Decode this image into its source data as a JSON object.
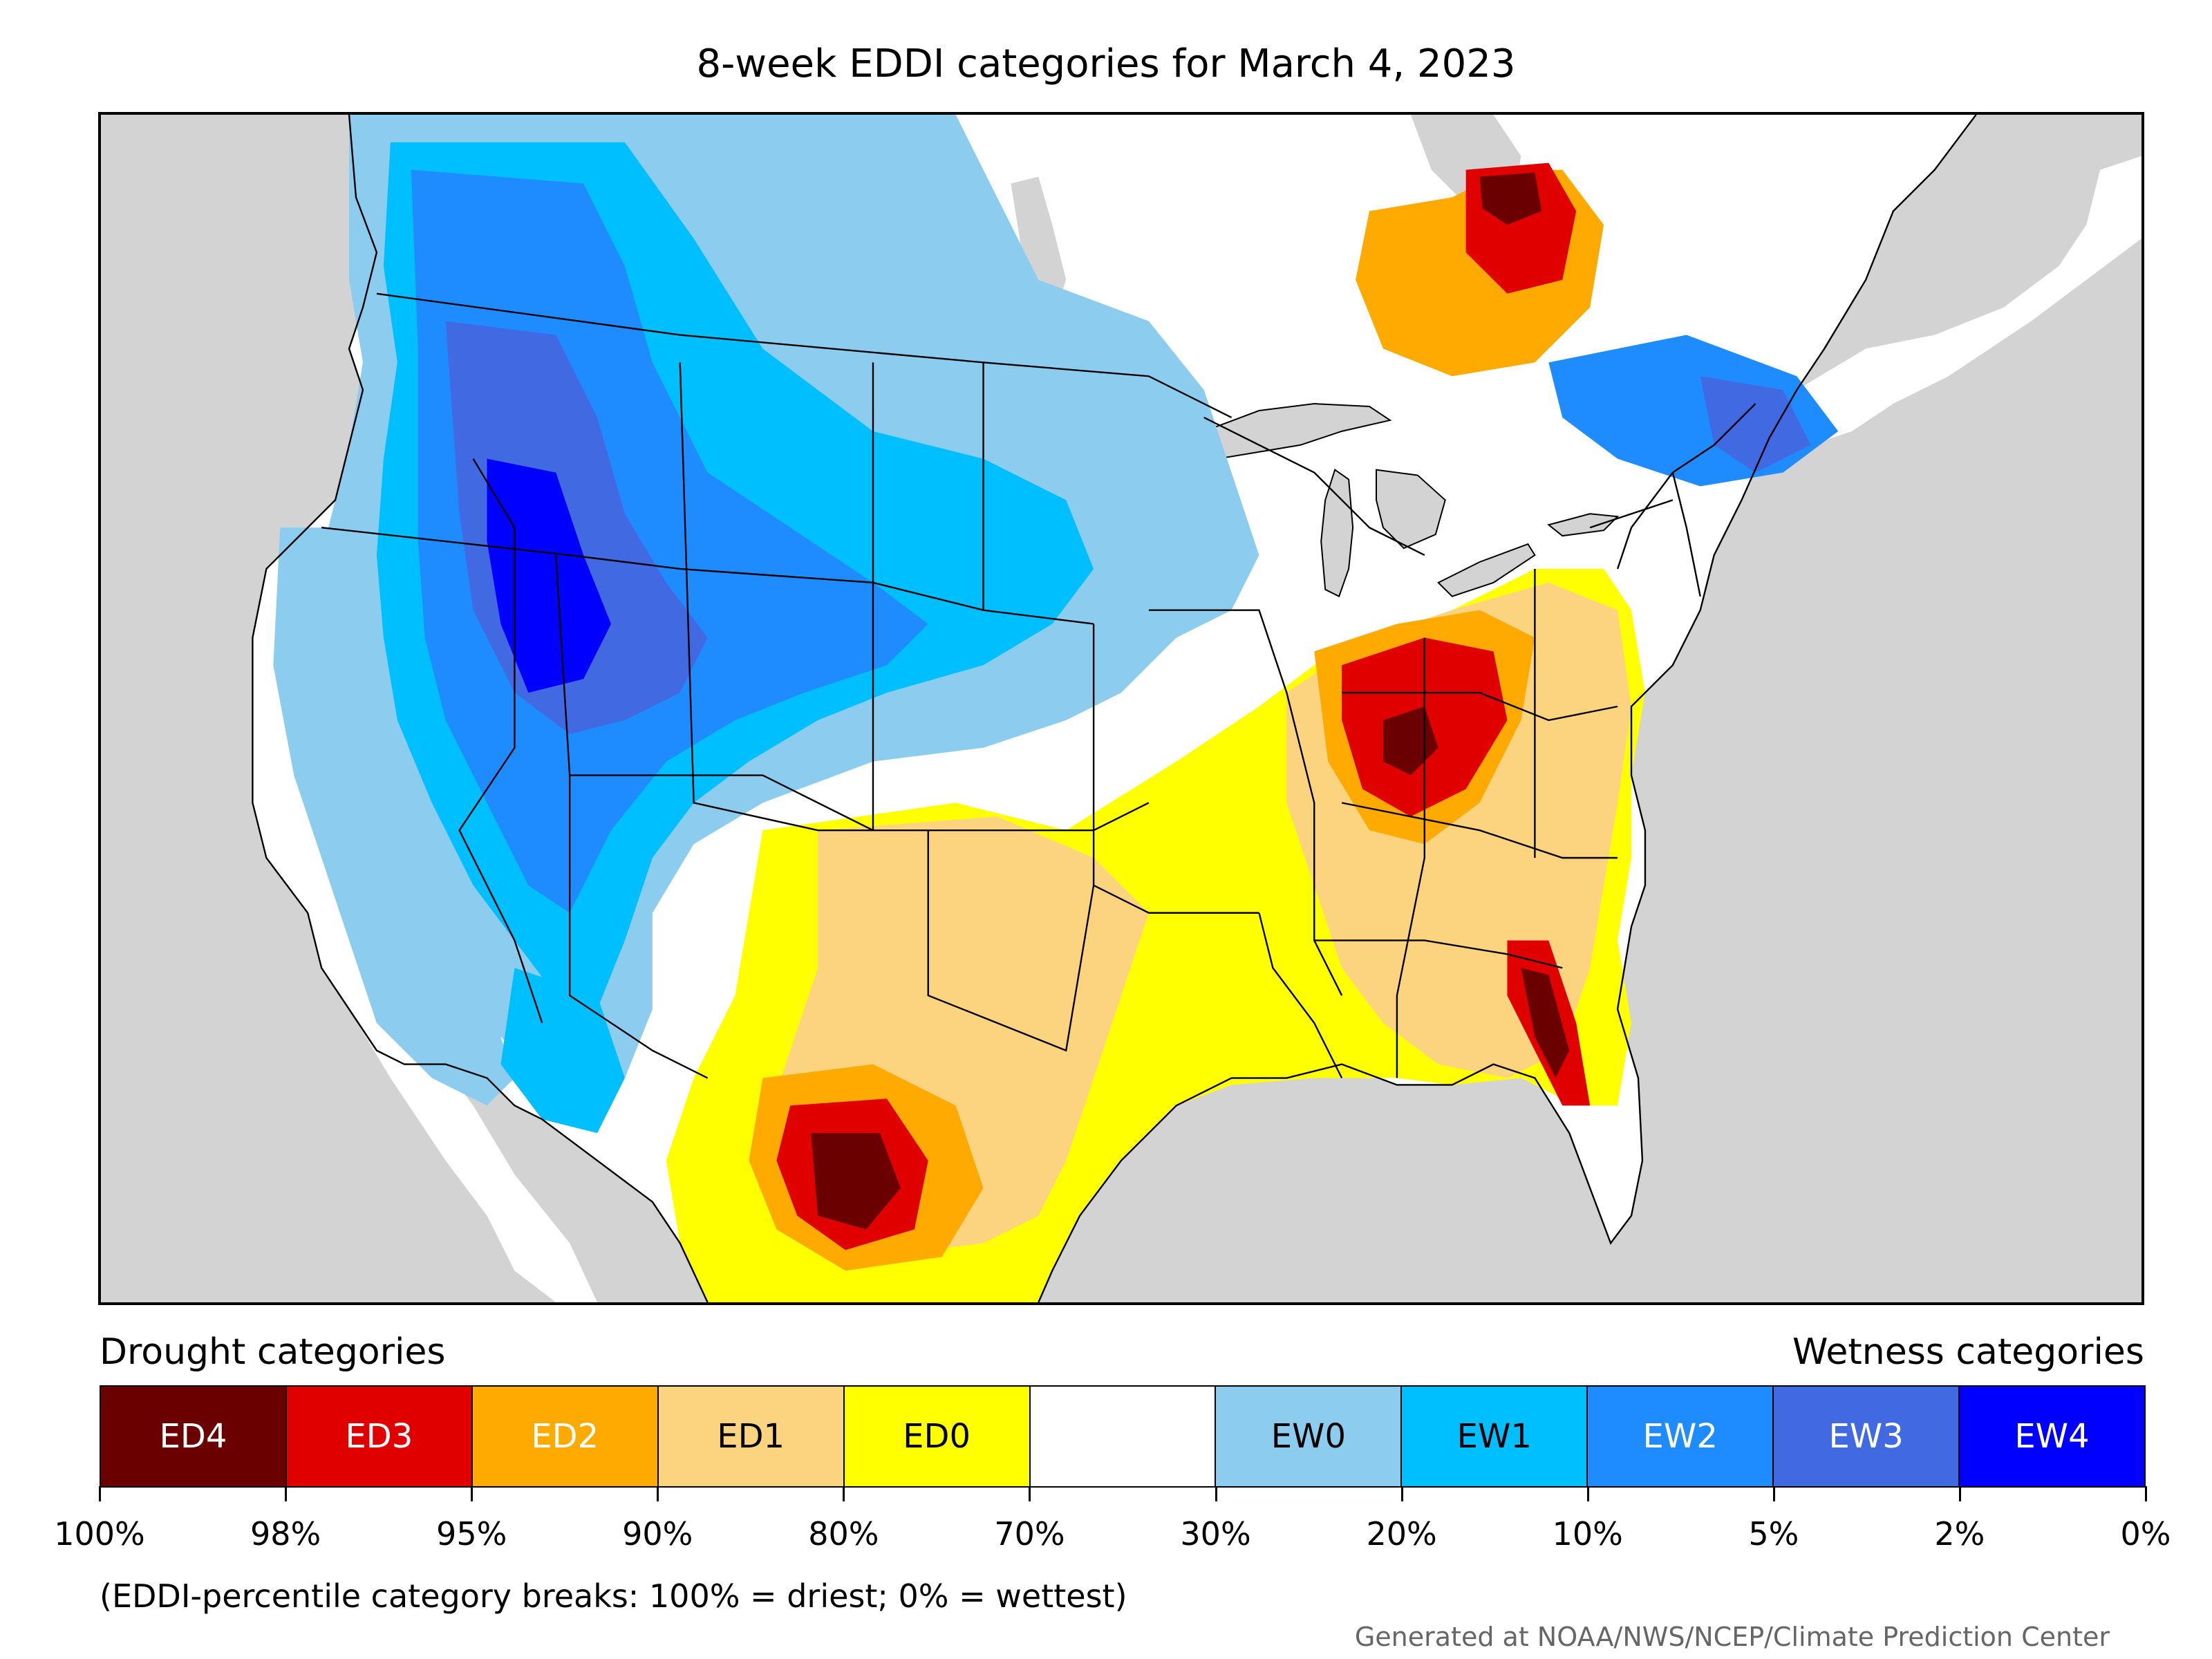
{
  "title": "8-week EDDI categories for March 4, 2023",
  "drought_heading": "Drought categories",
  "wetness_heading": "Wetness categories",
  "legend": [
    {
      "label": "ED4",
      "color": "#6b0000",
      "text_color": "#ffffff"
    },
    {
      "label": "ED3",
      "color": "#e00000",
      "text_color": "#ffffff"
    },
    {
      "label": "ED2",
      "color": "#ffaa00",
      "text_color": "#ffffff"
    },
    {
      "label": "ED1",
      "color": "#fcd37f",
      "text_color": "#000000"
    },
    {
      "label": "ED0",
      "color": "#ffff00",
      "text_color": "#000000"
    },
    {
      "label": "",
      "color": "#ffffff",
      "text_color": "#000000"
    },
    {
      "label": "EW0",
      "color": "#8ccdef",
      "text_color": "#000000"
    },
    {
      "label": "EW1",
      "color": "#00bfff",
      "text_color": "#000000"
    },
    {
      "label": "EW2",
      "color": "#1e8cff",
      "text_color": "#ffffff"
    },
    {
      "label": "EW3",
      "color": "#4169e1",
      "text_color": "#ffffff"
    },
    {
      "label": "EW4",
      "color": "#0000ff",
      "text_color": "#ffffff"
    }
  ],
  "tick_labels": [
    "100%",
    "98%",
    "95%",
    "90%",
    "80%",
    "70%",
    "30%",
    "20%",
    "10%",
    "5%",
    "2%",
    "0%"
  ],
  "footnote": "(EDDI-percentile category breaks: 100% = driest; 0% = wettest)",
  "credit": "Generated at NOAA/NWS/NCEP/Climate Prediction Center",
  "map": {
    "background_color": "#d3d3d3",
    "land_color": "#ffffff",
    "water_color": "#d3d3d3",
    "region": "Contiguous United States with parts of Canada and Mexico"
  }
}
